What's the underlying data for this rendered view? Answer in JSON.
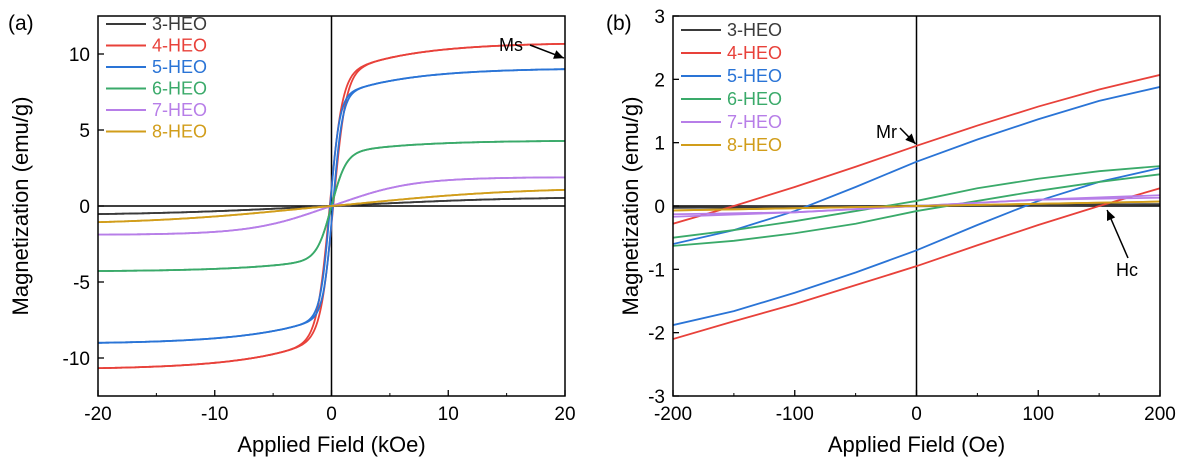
{
  "chart_data": [
    {
      "type": "line",
      "panel_label": "(a)",
      "xlabel": "Applied Field (kOe)",
      "ylabel": "Magnetization (emu/g)",
      "xlim": [
        -20,
        20
      ],
      "ylim": [
        -12.5,
        12.5
      ],
      "xticks": [
        -20,
        -10,
        0,
        10,
        20
      ],
      "yticks": [
        -10,
        -5,
        0,
        5,
        10
      ],
      "zero_lines": true,
      "grid": false,
      "legend": "top-left",
      "series": [
        {
          "name": "3-HEO",
          "color": "#3a3a3a",
          "ms": 0.55,
          "h0": 15,
          "coercivity": 0.0
        },
        {
          "name": "4-HEO",
          "color": "#e8413a",
          "ms": 9.6,
          "h0": 1.05,
          "coercivity": 0.15
        },
        {
          "name": "5-HEO",
          "color": "#2a74d6",
          "ms": 8.1,
          "h0": 0.8,
          "coercivity": 0.12
        },
        {
          "name": "6-HEO",
          "color": "#3aaa6a",
          "ms": 3.85,
          "h0": 1.2,
          "coercivity": 0.0
        },
        {
          "name": "7-HEO",
          "color": "#b77ee8",
          "ms": 1.7,
          "h0": 6.0,
          "coercivity": 0.0
        },
        {
          "name": "8-HEO",
          "color": "#d19d1a",
          "ms": 1.1,
          "h0": 15,
          "coercivity": 0.0
        }
      ],
      "annotations": [
        {
          "text": "Ms",
          "x": 20,
          "y": 9.6
        }
      ]
    },
    {
      "type": "line",
      "panel_label": "(b)",
      "xlabel": "Applied Field (Oe)",
      "ylabel": "Magnetization (emu/g)",
      "xlim": [
        -200,
        200
      ],
      "ylim": [
        -3,
        3
      ],
      "xticks": [
        -200,
        -100,
        0,
        100,
        200
      ],
      "yticks": [
        -3,
        -2,
        -1,
        0,
        1,
        2,
        3
      ],
      "zero_lines": true,
      "grid": false,
      "legend": "top-left",
      "series": [
        {
          "name": "3-HEO",
          "color": "#3a3a3a",
          "upper": [
            [
              -200,
              -0.02
            ],
            [
              200,
              0.03
            ]
          ],
          "lower": [
            [
              -200,
              -0.03
            ],
            [
              200,
              0.02
            ]
          ]
        },
        {
          "name": "4-HEO",
          "color": "#e8413a",
          "upper": [
            [
              -200,
              -0.28
            ],
            [
              -150,
              0.0
            ],
            [
              -100,
              0.3
            ],
            [
              -50,
              0.62
            ],
            [
              0,
              0.95
            ],
            [
              50,
              1.27
            ],
            [
              100,
              1.57
            ],
            [
              150,
              1.84
            ],
            [
              200,
              2.07
            ]
          ],
          "lower": [
            [
              -200,
              -2.1
            ],
            [
              -150,
              -1.82
            ],
            [
              -100,
              -1.55
            ],
            [
              -50,
              -1.25
            ],
            [
              0,
              -0.95
            ],
            [
              50,
              -0.62
            ],
            [
              100,
              -0.3
            ],
            [
              150,
              0.0
            ],
            [
              200,
              0.28
            ]
          ]
        },
        {
          "name": "5-HEO",
          "color": "#2a74d6",
          "upper": [
            [
              -200,
              -0.6
            ],
            [
              -150,
              -0.38
            ],
            [
              -100,
              -0.08
            ],
            [
              -50,
              0.3
            ],
            [
              0,
              0.7
            ],
            [
              50,
              1.05
            ],
            [
              100,
              1.37
            ],
            [
              150,
              1.66
            ],
            [
              200,
              1.88
            ]
          ],
          "lower": [
            [
              -200,
              -1.88
            ],
            [
              -150,
              -1.66
            ],
            [
              -100,
              -1.37
            ],
            [
              -50,
              -1.05
            ],
            [
              0,
              -0.7
            ],
            [
              50,
              -0.3
            ],
            [
              100,
              0.08
            ],
            [
              150,
              0.38
            ],
            [
              200,
              0.6
            ]
          ]
        },
        {
          "name": "6-HEO",
          "color": "#3aaa6a",
          "upper": [
            [
              -200,
              -0.5
            ],
            [
              -150,
              -0.38
            ],
            [
              -100,
              -0.24
            ],
            [
              -50,
              -0.08
            ],
            [
              0,
              0.08
            ],
            [
              50,
              0.28
            ],
            [
              100,
              0.43
            ],
            [
              150,
              0.55
            ],
            [
              200,
              0.63
            ]
          ],
          "lower": [
            [
              -200,
              -0.63
            ],
            [
              -150,
              -0.55
            ],
            [
              -100,
              -0.43
            ],
            [
              -50,
              -0.28
            ],
            [
              0,
              -0.08
            ],
            [
              50,
              0.08
            ],
            [
              100,
              0.24
            ],
            [
              150,
              0.38
            ],
            [
              200,
              0.5
            ]
          ]
        },
        {
          "name": "7-HEO",
          "color": "#b77ee8",
          "upper": [
            [
              -200,
              -0.13
            ],
            [
              -100,
              -0.1
            ],
            [
              0,
              0.0
            ],
            [
              100,
              0.1
            ],
            [
              200,
              0.17
            ]
          ],
          "lower": [
            [
              -200,
              -0.17
            ],
            [
              -100,
              -0.1
            ],
            [
              0,
              0.0
            ],
            [
              100,
              0.1
            ],
            [
              200,
              0.13
            ]
          ]
        },
        {
          "name": "8-HEO",
          "color": "#d19d1a",
          "upper": [
            [
              -200,
              -0.07
            ],
            [
              0,
              0.0
            ],
            [
              200,
              0.07
            ]
          ],
          "lower": [
            [
              -200,
              -0.07
            ],
            [
              0,
              0.0
            ],
            [
              200,
              0.07
            ]
          ]
        }
      ],
      "annotations": [
        {
          "text": "Mr",
          "x": 0,
          "y": 0.95
        },
        {
          "text": "Hc",
          "x": 150,
          "y": 0.0
        }
      ]
    }
  ]
}
